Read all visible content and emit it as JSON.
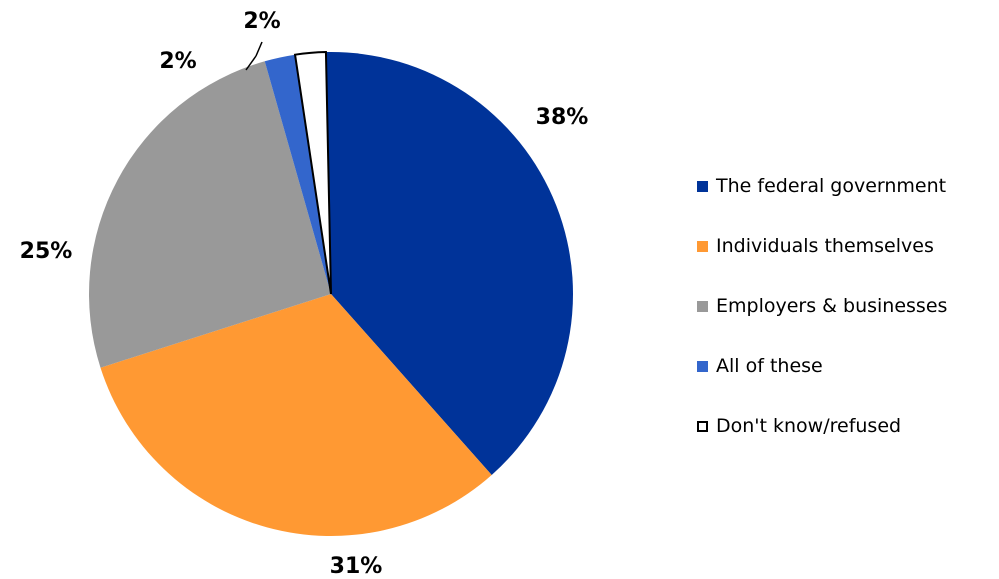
{
  "chart_data": {
    "type": "pie",
    "categories": [
      "The federal government",
      "Individuals themselves",
      "Employers & businesses",
      "All of these",
      "Don't know/refused"
    ],
    "values": [
      38,
      31,
      25,
      2,
      2
    ],
    "value_labels": [
      "38%",
      "31%",
      "25%",
      "2%",
      "2%"
    ],
    "colors": [
      "#003399",
      "#FF9933",
      "#999999",
      "#3366CC",
      "#FFFFFF"
    ],
    "legend_placement": "right",
    "title": ""
  }
}
